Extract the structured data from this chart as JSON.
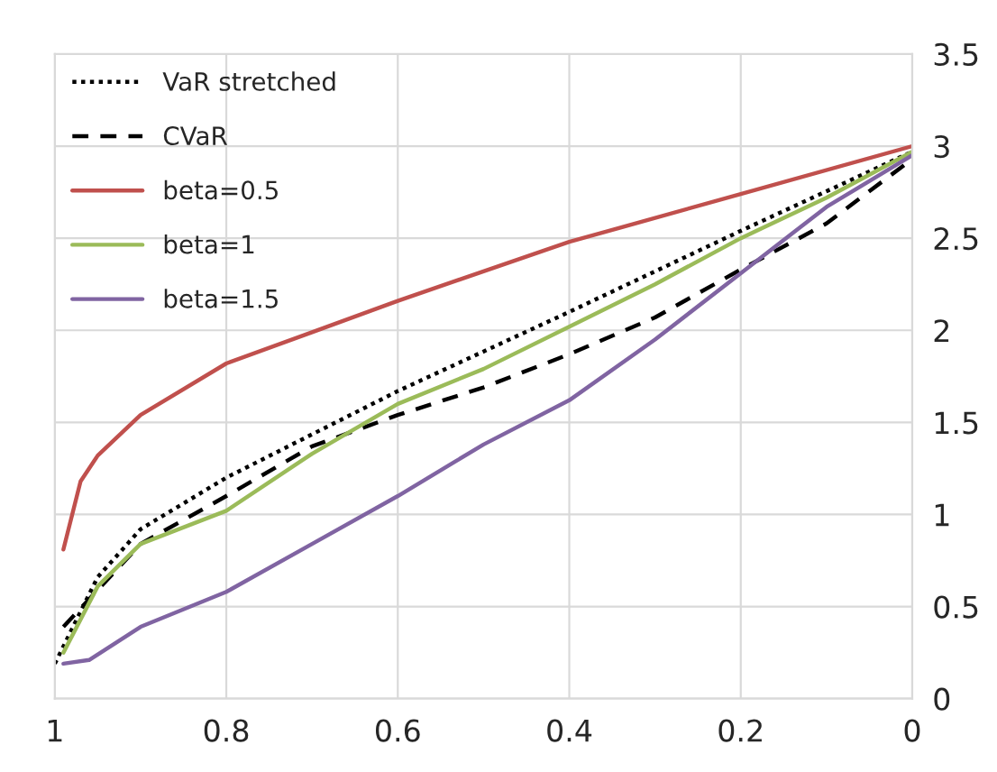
{
  "chart_data": {
    "type": "line",
    "xlim": [
      1,
      0
    ],
    "ylim": [
      0,
      3.5
    ],
    "xticks": [
      1,
      0.8,
      0.6,
      0.4,
      0.2,
      0
    ],
    "yticks": [
      0,
      0.5,
      1,
      1.5,
      2,
      2.5,
      3,
      3.5
    ],
    "grid": true,
    "legend": "top left",
    "marker": "none",
    "series": [
      {
        "name": "VaR stretched",
        "color": "#000000",
        "line_style": "dotted",
        "x": [
          1,
          0.95,
          0.9,
          0.8,
          0.6,
          0.4,
          0.2,
          0
        ],
        "values": [
          0.19,
          0.66,
          0.92,
          1.2,
          1.67,
          2.1,
          2.54,
          2.97
        ]
      },
      {
        "name": "CVaR",
        "color": "#000000",
        "line_style": "dashed",
        "x": [
          0.99,
          0.95,
          0.9,
          0.8,
          0.7,
          0.6,
          0.5,
          0.4,
          0.3,
          0.2,
          0.1,
          0
        ],
        "values": [
          0.39,
          0.59,
          0.84,
          1.1,
          1.37,
          1.54,
          1.69,
          1.87,
          2.07,
          2.33,
          2.58,
          2.93
        ]
      },
      {
        "name": "beta=0.5",
        "color": "#c0504d",
        "line_style": "solid",
        "x": [
          0.99,
          0.97,
          0.95,
          0.9,
          0.8,
          0.7,
          0.6,
          0.4,
          0.2,
          0
        ],
        "values": [
          0.81,
          1.18,
          1.32,
          1.54,
          1.82,
          1.99,
          2.16,
          2.48,
          2.74,
          3.0
        ]
      },
      {
        "name": "beta=1",
        "color": "#9bbb59",
        "line_style": "solid",
        "x": [
          0.99,
          0.95,
          0.9,
          0.8,
          0.7,
          0.6,
          0.5,
          0.4,
          0.3,
          0.2,
          0.1,
          0
        ],
        "values": [
          0.25,
          0.61,
          0.84,
          1.02,
          1.33,
          1.6,
          1.79,
          2.02,
          2.25,
          2.5,
          2.72,
          2.97
        ]
      },
      {
        "name": "beta=1.5",
        "color": "#8064a2",
        "line_style": "solid",
        "x": [
          0.99,
          0.96,
          0.9,
          0.8,
          0.7,
          0.6,
          0.5,
          0.4,
          0.3,
          0.2,
          0.1,
          0
        ],
        "values": [
          0.19,
          0.21,
          0.39,
          0.58,
          0.84,
          1.1,
          1.38,
          1.62,
          1.95,
          2.31,
          2.67,
          2.95
        ]
      }
    ]
  }
}
